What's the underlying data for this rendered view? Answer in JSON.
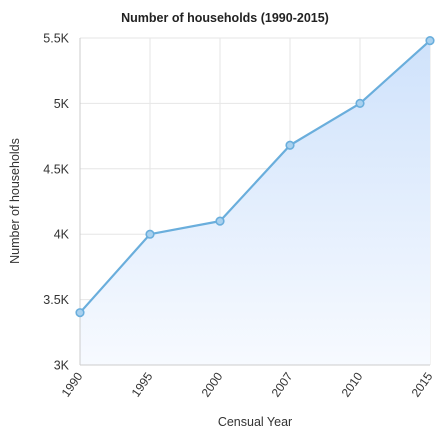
{
  "chart_data": {
    "type": "area",
    "title": "Number of households (1990-2015)",
    "xlabel": "Censual Year",
    "ylabel": "Number of households",
    "categories": [
      "1990",
      "1995",
      "2000",
      "2007",
      "2010",
      "2015"
    ],
    "values": [
      3400,
      4000,
      4100,
      4680,
      5000,
      5480
    ],
    "ylim": [
      3000,
      5500
    ],
    "yticks": [
      {
        "value": 3000,
        "label": "3K"
      },
      {
        "value": 3500,
        "label": "3.5K"
      },
      {
        "value": 4000,
        "label": "4K"
      },
      {
        "value": 4500,
        "label": "4.5K"
      },
      {
        "value": 5000,
        "label": "5K"
      },
      {
        "value": 5500,
        "label": "5.5K"
      }
    ],
    "grid": true,
    "colors": {
      "line": "#6aaedc",
      "point_fill": "#a9d1ef",
      "area_top": "#cfe2fb",
      "area_bottom": "#f7faff",
      "grid": "#e6e6e6",
      "axis_text": "#333333",
      "title_text": "#222222"
    }
  }
}
